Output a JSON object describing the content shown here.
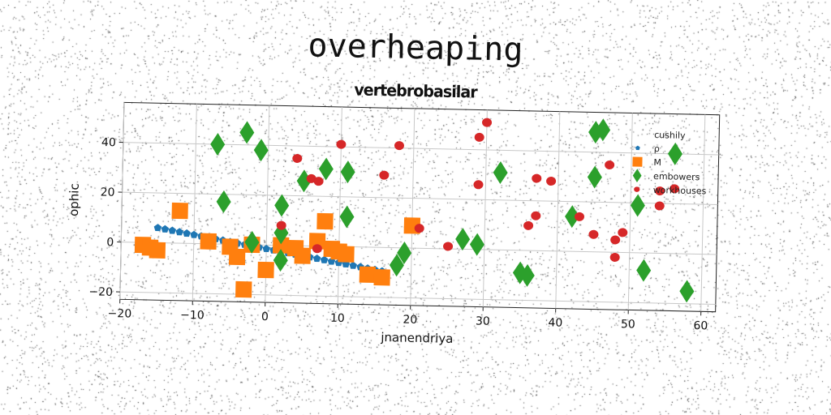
{
  "title": "overheaping",
  "chart_data": {
    "type": "scatter",
    "title": "vertebrobasilar",
    "xlabel": "jnanendriya",
    "ylabel": "ophic",
    "xlim": [
      -20,
      62
    ],
    "ylim": [
      -23,
      56
    ],
    "xticks": [
      -20,
      -10,
      0,
      10,
      20,
      30,
      40,
      50,
      60
    ],
    "yticks": [
      -20,
      0,
      20,
      40
    ],
    "grid": true,
    "legend": "top-right",
    "series": [
      {
        "name": "cushily",
        "marker": "none",
        "color": "#1f77b4",
        "x": [],
        "y": []
      },
      {
        "name": "ρ",
        "marker": "pentagon",
        "color": "#1f77b4",
        "x": [
          -15,
          -14,
          -13,
          -12,
          -11,
          -10,
          -9,
          -8,
          -7,
          -6,
          -5,
          -4,
          -3,
          -2,
          -1,
          0,
          1,
          2,
          3,
          4,
          5,
          6,
          7,
          8,
          9,
          10,
          11,
          12,
          13,
          14,
          15,
          16
        ],
        "y": [
          6,
          5.5,
          5,
          4.5,
          4,
          3.5,
          3,
          2.5,
          2,
          1.5,
          1,
          0.5,
          0,
          -0.5,
          -1,
          -1.5,
          -2,
          -2.5,
          -3,
          -3.5,
          -4,
          -4.5,
          -5,
          -5.5,
          -6,
          -6.5,
          -7,
          -7.5,
          -8,
          -8.5,
          -9,
          -9.5
        ]
      },
      {
        "name": "M",
        "marker": "square",
        "color": "#ff7f0e",
        "x": [
          -17,
          -16,
          -15,
          -12,
          -8,
          -5,
          -4,
          -3,
          -2,
          0,
          2,
          4,
          5,
          7,
          8,
          9,
          10,
          11,
          14,
          16,
          20
        ],
        "y": [
          -1,
          -2,
          -3,
          13,
          1,
          -1,
          -5,
          -18,
          0,
          -10,
          0,
          -1,
          -4,
          2,
          10,
          -1,
          -2,
          -3,
          -11,
          -12,
          9
        ]
      },
      {
        "name": "embowers",
        "marker": "diamond",
        "color": "#2ca02c",
        "x": [
          -7,
          -6,
          -3,
          -2,
          -1,
          2,
          2,
          5,
          8,
          11,
          11,
          18,
          19,
          27,
          29,
          32,
          35,
          36,
          42,
          45,
          45,
          46,
          51,
          52,
          56,
          58,
          2
        ],
        "y": [
          40,
          17,
          45,
          1,
          38,
          16,
          -6,
          26,
          31,
          30,
          12,
          -7,
          -2,
          4,
          2,
          31,
          -9,
          -10,
          14,
          48,
          30,
          49,
          19,
          -7,
          40,
          -15,
          5
        ],
        "extra_note": ""
      },
      {
        "name": "workhouses",
        "marker": "circle",
        "color": "#d62728",
        "x": [
          2,
          4,
          6,
          7,
          10,
          16,
          18,
          21,
          25,
          29,
          29,
          30,
          36,
          37,
          37,
          39,
          43,
          45,
          47,
          48,
          48,
          49,
          54,
          54,
          56,
          7
        ],
        "y": [
          8,
          35,
          27,
          26,
          41,
          29,
          41,
          8,
          1,
          26,
          45,
          51,
          10,
          14,
          29,
          28,
          14,
          7,
          35,
          5,
          -2,
          8,
          19,
          25,
          26,
          -1
        ]
      }
    ]
  }
}
